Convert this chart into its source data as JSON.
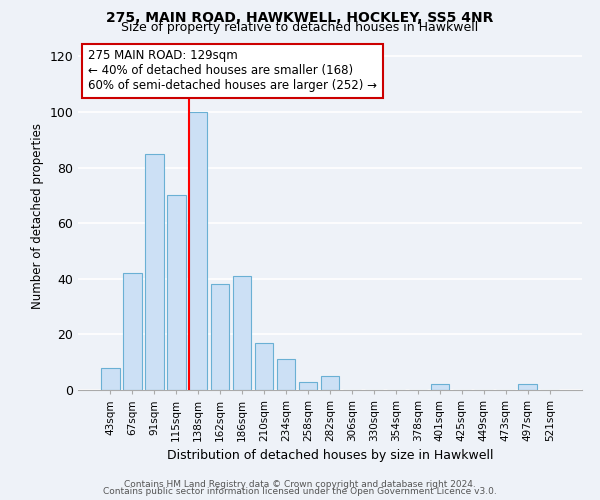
{
  "title": "275, MAIN ROAD, HAWKWELL, HOCKLEY, SS5 4NR",
  "subtitle": "Size of property relative to detached houses in Hawkwell",
  "xlabel": "Distribution of detached houses by size in Hawkwell",
  "ylabel": "Number of detached properties",
  "bar_labels": [
    "43sqm",
    "67sqm",
    "91sqm",
    "115sqm",
    "138sqm",
    "162sqm",
    "186sqm",
    "210sqm",
    "234sqm",
    "258sqm",
    "282sqm",
    "306sqm",
    "330sqm",
    "354sqm",
    "378sqm",
    "401sqm",
    "425sqm",
    "449sqm",
    "473sqm",
    "497sqm",
    "521sqm"
  ],
  "bar_heights": [
    8,
    42,
    85,
    70,
    100,
    38,
    41,
    17,
    11,
    3,
    5,
    0,
    0,
    0,
    0,
    2,
    0,
    0,
    0,
    2,
    0
  ],
  "bar_color": "#cce0f5",
  "bar_edge_color": "#6ab0d4",
  "red_line_index": 4,
  "annotation_title": "275 MAIN ROAD: 129sqm",
  "annotation_line1": "← 40% of detached houses are smaller (168)",
  "annotation_line2": "60% of semi-detached houses are larger (252) →",
  "annotation_box_color": "#ffffff",
  "annotation_box_edge": "#cc0000",
  "ylim": [
    0,
    125
  ],
  "yticks": [
    0,
    20,
    40,
    60,
    80,
    100,
    120
  ],
  "footer1": "Contains HM Land Registry data © Crown copyright and database right 2024.",
  "footer2": "Contains public sector information licensed under the Open Government Licence v3.0.",
  "bg_color": "#eef2f8"
}
